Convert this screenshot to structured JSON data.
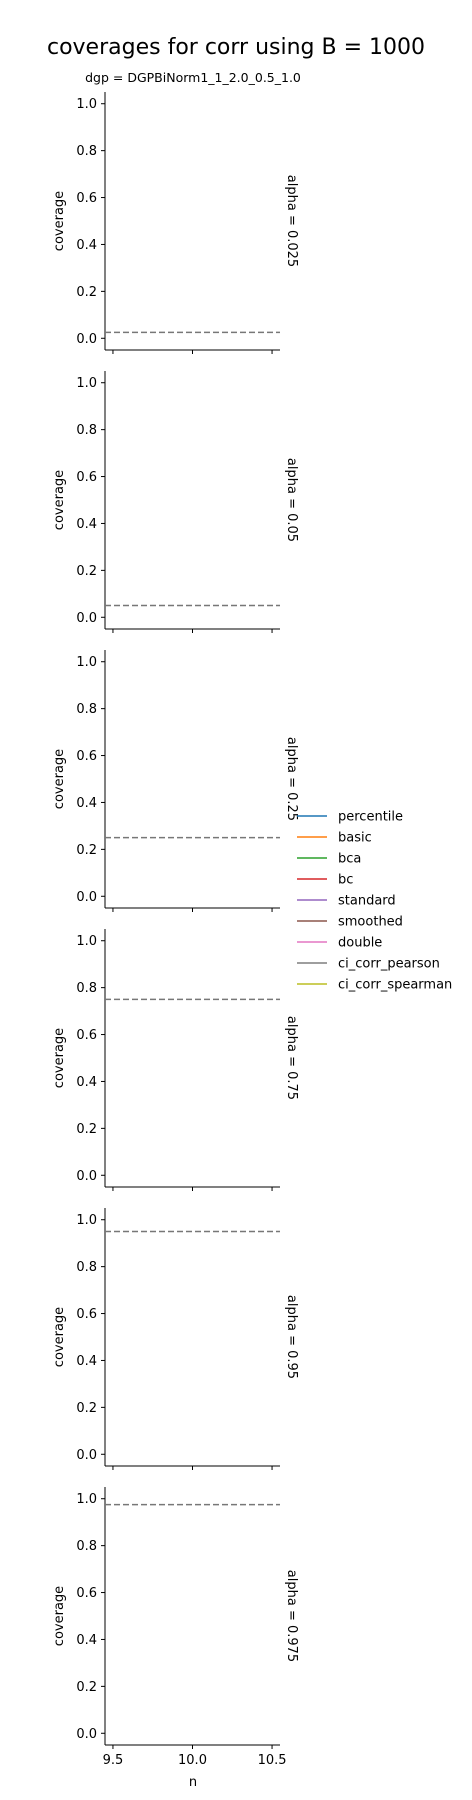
{
  "figure_title": "coverages for corr using B = 1000",
  "chart_data": {
    "type": "line",
    "title": "coverages for corr using B = 1000",
    "facet_title": "dgp = DGPBiNorm1_1_2.0_0.5_1.0",
    "xlabel": "n",
    "ylabel": "coverage",
    "x_ticks": [
      "9.5",
      "10.0",
      "10.5"
    ],
    "y_ticks": [
      "0.0",
      "0.2",
      "0.4",
      "0.6",
      "0.8",
      "1.0"
    ],
    "xlim": [
      9.45,
      10.55
    ],
    "ylim": [
      -0.05,
      1.05
    ],
    "grid": false,
    "legend_position": "right",
    "legend": [
      {
        "name": "percentile",
        "color": "#1f77b4"
      },
      {
        "name": "basic",
        "color": "#ff7f0e"
      },
      {
        "name": "bca",
        "color": "#2ca02c"
      },
      {
        "name": "bc",
        "color": "#d62728"
      },
      {
        "name": "standard",
        "color": "#9467bd"
      },
      {
        "name": "smoothed",
        "color": "#8c564b"
      },
      {
        "name": "double",
        "color": "#e377c2"
      },
      {
        "name": "ci_corr_pearson",
        "color": "#7f7f7f"
      },
      {
        "name": "ci_corr_spearman",
        "color": "#bcbd22"
      }
    ],
    "reference_line_color": "#777777",
    "panels": [
      {
        "label": "alpha = 0.025",
        "alpha": 0.025,
        "reference": 0.025
      },
      {
        "label": "alpha = 0.05",
        "alpha": 0.05,
        "reference": 0.05
      },
      {
        "label": "alpha = 0.25",
        "alpha": 0.25,
        "reference": 0.25
      },
      {
        "label": "alpha = 0.75",
        "alpha": 0.75,
        "reference": 0.75
      },
      {
        "label": "alpha = 0.95",
        "alpha": 0.95,
        "reference": 0.95
      },
      {
        "label": "alpha = 0.975",
        "alpha": 0.975,
        "reference": 0.975
      }
    ]
  }
}
